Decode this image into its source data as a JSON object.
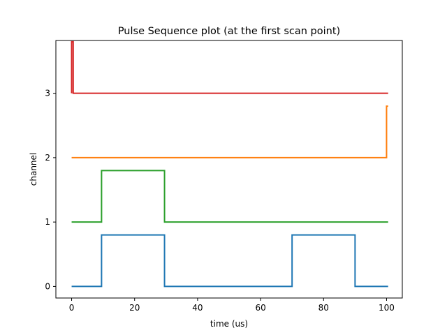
{
  "chart_data": {
    "type": "line",
    "title": "Pulse Sequence plot (at the first scan point)",
    "xlabel": "time (us)",
    "ylabel": "channel",
    "xlim": [
      -5,
      105
    ],
    "ylim": [
      -0.18,
      3.82
    ],
    "xticks": [
      0,
      20,
      40,
      60,
      80,
      100
    ],
    "yticks": [
      0,
      1,
      2,
      3
    ],
    "grid": false,
    "legend": "none",
    "series": [
      {
        "color": "#1f77b4",
        "x": [
          0,
          9.5,
          9.5,
          29.5,
          29.5,
          70,
          70,
          90,
          90,
          100.5
        ],
        "y": [
          0,
          0,
          0.8,
          0.8,
          0,
          0,
          0.8,
          0.8,
          0,
          0
        ]
      },
      {
        "color": "#2ca02c",
        "x": [
          0,
          9.5,
          9.5,
          29.5,
          29.5,
          100.5
        ],
        "y": [
          1,
          1,
          1.8,
          1.8,
          1,
          1
        ]
      },
      {
        "color": "#ff7f0e",
        "x": [
          0,
          100,
          100,
          100.5
        ],
        "y": [
          2,
          2,
          2.8,
          2.8
        ]
      },
      {
        "color": "#d62728",
        "x": [
          0,
          0,
          0.5,
          0.5,
          100.5
        ],
        "y": [
          3,
          3.8,
          3.8,
          3,
          3
        ]
      }
    ]
  }
}
